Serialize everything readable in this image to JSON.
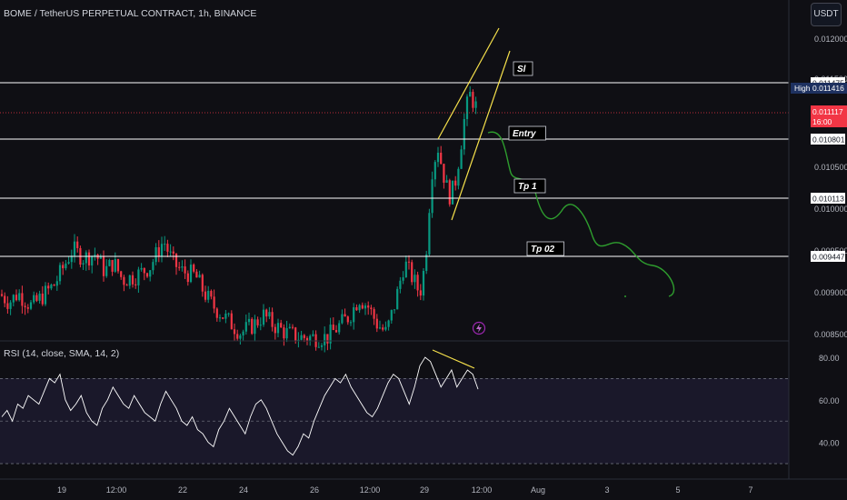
{
  "header": {
    "symbol": "BOME / TetherUS PERPETUAL CONTRACT, 1h, BINANCE",
    "currency_button": "USDT"
  },
  "rsi_header": "RSI (14, close, SMA, 14, 2)",
  "colors": {
    "background": "#0f0f14",
    "up": "#089981",
    "down": "#f23645",
    "level_line": "#ffffff",
    "wedge": "#f5e04b",
    "projection": "#2e9d2e",
    "rsi_line": "#ffffff",
    "rsi_band": "#1c1a2e",
    "last_price_bg": "#f23645",
    "high_bg": "#1e3160"
  },
  "chart_data": [
    {
      "type": "candlestick",
      "title": "BOME / TetherUS PERPETUAL CONTRACT, 1h, BINANCE",
      "ylim": [
        0.0085,
        0.0123
      ],
      "y_ticks": [
        "0.012000",
        "0.011500",
        "0.011000",
        "0.010500",
        "0.010000",
        "0.009500",
        "0.009000",
        "0.008500"
      ],
      "x_ticks": [
        "19",
        "12:00",
        "22",
        "24",
        "26",
        "12:00",
        "29",
        "12:00",
        "Aug",
        "3",
        "5",
        "7"
      ],
      "price_path": [
        [
          0,
          0.00904
        ],
        [
          10,
          0.00895
        ],
        [
          20,
          0.00905
        ],
        [
          35,
          0.0089
        ],
        [
          50,
          0.00905
        ],
        [
          60,
          0.00915
        ],
        [
          70,
          0.00935
        ],
        [
          80,
          0.00955
        ],
        [
          92,
          0.00945
        ],
        [
          105,
          0.0095
        ],
        [
          115,
          0.0093
        ],
        [
          125,
          0.0094
        ],
        [
          135,
          0.0092
        ],
        [
          150,
          0.00925
        ],
        [
          165,
          0.00935
        ],
        [
          180,
          0.00965
        ],
        [
          190,
          0.0094
        ],
        [
          200,
          0.0093
        ],
        [
          215,
          0.00925
        ],
        [
          225,
          0.00905
        ],
        [
          235,
          0.0089
        ],
        [
          250,
          0.00875
        ],
        [
          265,
          0.0086
        ],
        [
          280,
          0.0087
        ],
        [
          290,
          0.0088
        ],
        [
          300,
          0.0087
        ],
        [
          315,
          0.0086
        ],
        [
          330,
          0.00855
        ],
        [
          345,
          0.00855
        ],
        [
          360,
          0.00855
        ],
        [
          375,
          0.0087
        ],
        [
          385,
          0.0088
        ],
        [
          395,
          0.009
        ],
        [
          405,
          0.0089
        ],
        [
          415,
          0.0087
        ],
        [
          425,
          0.0086
        ],
        [
          435,
          0.00895
        ],
        [
          445,
          0.0094
        ],
        [
          455,
          0.0092
        ],
        [
          462,
          0.00905
        ],
        [
          468,
          0.0094
        ],
        [
          472,
          0.01
        ],
        [
          476,
          0.0105
        ],
        [
          482,
          0.0107
        ],
        [
          488,
          0.0104
        ],
        [
          494,
          0.01015
        ],
        [
          500,
          0.01025
        ],
        [
          506,
          0.01065
        ],
        [
          512,
          0.0111
        ],
        [
          517,
          0.0113
        ],
        [
          522,
          0.0112
        ],
        [
          526,
          0.01112
        ]
      ],
      "levels": [
        {
          "label": "0.011475",
          "value": 0.011475
        },
        {
          "label": "0.010801",
          "value": 0.010801
        },
        {
          "label": "0.010113",
          "value": 0.010113
        },
        {
          "label": "0.009447",
          "value": 0.009447
        }
      ],
      "last_price": {
        "value": "0.011117",
        "countdown": "16:00"
      },
      "high": {
        "label": "High",
        "value": "0.011416"
      },
      "annotations": [
        "Sl",
        "Entry",
        "Tp 1",
        "Tp 02"
      ]
    },
    {
      "type": "line",
      "title": "RSI (14, close, SMA, 14, 2)",
      "ylim": [
        30,
        85
      ],
      "y_ticks": [
        "80.00",
        "60.00",
        "40.00"
      ],
      "bands": [
        70,
        50,
        30
      ],
      "values": [
        52,
        55,
        50,
        58,
        56,
        62,
        60,
        58,
        64,
        70,
        68,
        72,
        60,
        55,
        58,
        62,
        54,
        50,
        48,
        56,
        60,
        66,
        62,
        58,
        56,
        62,
        58,
        54,
        52,
        50,
        58,
        64,
        60,
        56,
        50,
        48,
        52,
        46,
        44,
        40,
        38,
        46,
        50,
        56,
        52,
        48,
        44,
        52,
        58,
        60,
        56,
        50,
        44,
        40,
        36,
        34,
        38,
        44,
        42,
        50,
        56,
        62,
        66,
        70,
        68,
        72,
        66,
        62,
        58,
        54,
        52,
        56,
        62,
        68,
        72,
        70,
        64,
        58,
        66,
        76,
        80,
        78,
        72,
        66,
        70,
        74,
        66,
        70,
        74,
        72,
        65
      ]
    }
  ]
}
